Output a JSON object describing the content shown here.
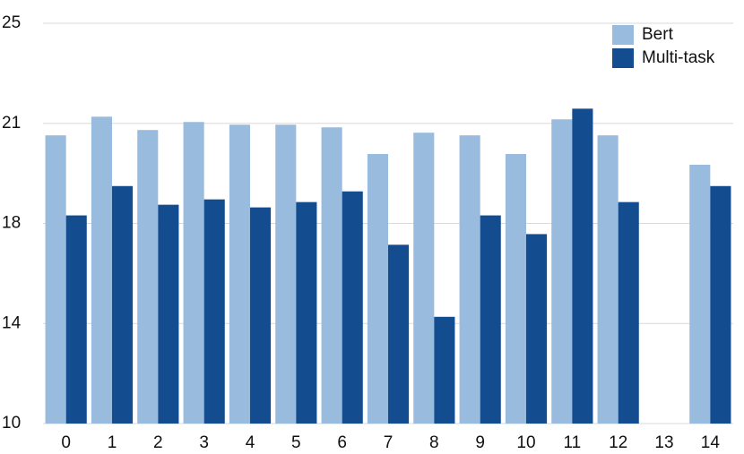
{
  "chart_data": {
    "type": "bar",
    "categories": [
      "0",
      "1",
      "2",
      "3",
      "4",
      "5",
      "6",
      "7",
      "8",
      "9",
      "10",
      "11",
      "12",
      "13",
      "14"
    ],
    "series": [
      {
        "name": "Bert",
        "color": "#98bbde",
        "values": [
          20.8,
          21.5,
          21.0,
          21.3,
          21.2,
          21.2,
          21.1,
          20.1,
          20.9,
          20.8,
          20.1,
          21.4,
          20.8,
          null,
          19.7
        ]
      },
      {
        "name": "Multi-task",
        "color": "#134d8f",
        "values": [
          17.8,
          18.9,
          18.2,
          18.4,
          18.1,
          18.3,
          18.7,
          16.7,
          14.0,
          17.8,
          17.1,
          21.8,
          18.3,
          null,
          18.9
        ]
      }
    ],
    "ylim": [
      10,
      25
    ],
    "yticks": [
      10,
      {
        "value": 13.75,
        "label": "14"
      },
      {
        "value": 17.5,
        "label": "18"
      },
      {
        "value": 21.25,
        "label": "21"
      },
      25
    ],
    "grid": true,
    "legend": "top-right"
  }
}
